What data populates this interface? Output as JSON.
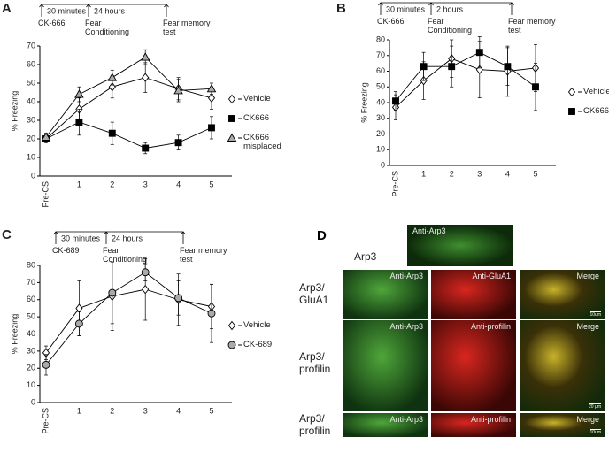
{
  "chart_data": [
    {
      "type": "line",
      "panel_label": "A",
      "y_label": "% Freezing",
      "timeline": {
        "events": [
          "CK-666",
          "Fear Conditioning",
          "Fear memory test"
        ],
        "intervals": [
          "30 minutes",
          "24 hours"
        ]
      },
      "categories": [
        "Pre-CS",
        "1",
        "2",
        "3",
        "4",
        "5"
      ],
      "ylim": [
        0,
        70
      ],
      "yticks": [
        0,
        10,
        20,
        30,
        40,
        50,
        60,
        70
      ],
      "series": [
        {
          "name": "Vehicle",
          "marker": "diamond",
          "color": "#ffffff",
          "values": [
            20,
            36,
            48,
            53,
            47,
            42
          ],
          "errors": [
            2,
            6,
            6,
            8,
            6,
            6
          ]
        },
        {
          "name": "CK666",
          "marker": "square",
          "color": "#000000",
          "values": [
            20,
            29,
            23,
            15,
            18,
            26
          ],
          "errors": [
            2,
            7,
            6,
            3,
            4,
            6
          ]
        },
        {
          "name": "CK666 misplaced",
          "marker": "triangle",
          "color": "#aaaaaa",
          "values": [
            21,
            44,
            53,
            64,
            46,
            47
          ],
          "errors": [
            2,
            4,
            4,
            4,
            6,
            3
          ]
        }
      ]
    },
    {
      "type": "line",
      "panel_label": "B",
      "y_label": "% Freezing",
      "timeline": {
        "events": [
          "CK-666",
          "Fear Conditioning",
          "Fear memory test"
        ],
        "intervals": [
          "30 minutes",
          "2 hours"
        ]
      },
      "categories": [
        "Pre-CS",
        "1",
        "2",
        "3",
        "4",
        "5"
      ],
      "ylim": [
        0,
        80
      ],
      "yticks": [
        0,
        10,
        20,
        30,
        40,
        50,
        60,
        70,
        80
      ],
      "series": [
        {
          "name": "Vehicle",
          "marker": "diamond",
          "color": "#ffffff",
          "values": [
            37,
            54,
            68,
            61,
            60,
            62
          ],
          "errors": [
            8,
            12,
            12,
            18,
            16,
            15
          ]
        },
        {
          "name": "CK666",
          "marker": "square",
          "color": "#000000",
          "values": [
            41,
            63,
            63,
            72,
            63,
            50
          ],
          "errors": [
            6,
            9,
            13,
            10,
            12,
            15
          ]
        }
      ]
    },
    {
      "type": "line",
      "panel_label": "C",
      "y_label": "% Freezing",
      "timeline": {
        "events": [
          "CK-689",
          "Fear Conditioning",
          "Fear memory test"
        ],
        "intervals": [
          "30 minutes",
          "24 hours"
        ]
      },
      "categories": [
        "Pre-CS",
        "1",
        "2",
        "3",
        "4",
        "5"
      ],
      "ylim": [
        0,
        80
      ],
      "yticks": [
        0,
        10,
        20,
        30,
        40,
        50,
        60,
        70,
        80
      ],
      "series": [
        {
          "name": "Vehicle",
          "marker": "diamond",
          "color": "#ffffff",
          "values": [
            29,
            55,
            62,
            66,
            60,
            56
          ],
          "errors": [
            4,
            16,
            20,
            18,
            15,
            13
          ]
        },
        {
          "name": "CK-689",
          "marker": "circle",
          "color": "#aaaaaa",
          "values": [
            22,
            46,
            64,
            76,
            61,
            52
          ],
          "errors": [
            6,
            7,
            18,
            5,
            10,
            17
          ]
        }
      ]
    }
  ],
  "panel_d": {
    "label": "D",
    "top": {
      "row_label": "Arp3",
      "image_label": "Anti-Arp3"
    },
    "rows": [
      {
        "row_label": "Arp3/ GluA1",
        "images": [
          "Anti-Arp3",
          "Anti-GluA1",
          "Merge"
        ],
        "scale_bar": "10um"
      },
      {
        "row_label": "Arp3/ profilin",
        "images": [
          "Anti-Arp3",
          "Anti-profilin",
          "Merge"
        ],
        "scale_bar": "20 µm"
      },
      {
        "row_label": "Arp3/ profilin",
        "images": [
          "Anti-Arp3",
          "Anti-profilin",
          "Merge"
        ],
        "scale_bar": "10um"
      }
    ]
  }
}
